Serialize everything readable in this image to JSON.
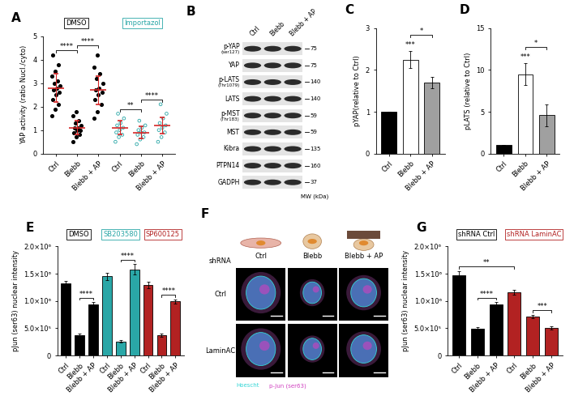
{
  "chart_data": [
    {
      "type": "scatter",
      "panel_label": "A",
      "ylabel": "YAP activity (ratio Nucl./cyto)",
      "categories": [
        "Ctrl",
        "Blebb",
        "Blebb + AP",
        "Ctrl",
        "Blebb",
        "Blebb + AP"
      ],
      "ylim": [
        0,
        5
      ],
      "yticks": [
        0,
        1,
        2,
        3,
        4,
        5
      ],
      "series": [
        {
          "name": "DMSO",
          "color": "#000000",
          "marker": "o",
          "points": [
            [
              1.6,
              1.9,
              2.1,
              2.3,
              2.5,
              2.6,
              2.7,
              2.8,
              2.9,
              3.0,
              3.1,
              3.3,
              3.5,
              3.8,
              4.2
            ],
            [
              0.5,
              0.7,
              0.8,
              0.9,
              1.0,
              1.0,
              1.1,
              1.1,
              1.2,
              1.3,
              1.4,
              1.6,
              1.8
            ],
            [
              1.5,
              1.8,
              2.1,
              2.3,
              2.5,
              2.6,
              2.7,
              2.8,
              3.0,
              3.2,
              3.4,
              3.7,
              4.2
            ],
            null,
            null,
            null
          ],
          "mean": [
            2.8,
            1.1,
            2.7,
            null,
            null,
            null
          ],
          "sd": [
            0.6,
            0.3,
            0.6,
            null,
            null,
            null
          ]
        },
        {
          "name": "Importazol",
          "color": "#2aa7a7",
          "marker": "open_circle",
          "points": [
            null,
            null,
            null,
            [
              0.5,
              0.7,
              0.8,
              0.9,
              1.0,
              1.1,
              1.2,
              1.3,
              1.5,
              1.7
            ],
            [
              0.4,
              0.6,
              0.7,
              0.8,
              0.9,
              0.9,
              1.0,
              1.1,
              1.2,
              1.4
            ],
            [
              0.5,
              0.7,
              0.9,
              1.0,
              1.1,
              1.2,
              1.3,
              1.5,
              1.7,
              2.1
            ]
          ],
          "mean": [
            null,
            null,
            null,
            1.1,
            0.9,
            1.2
          ],
          "sd": [
            null,
            null,
            null,
            0.3,
            0.25,
            0.35
          ]
        }
      ],
      "mean_color": "#d62728",
      "annotations": [
        {
          "text": "****",
          "from": 0,
          "to": 1
        },
        {
          "text": "****",
          "from": 1,
          "to": 2
        },
        {
          "text": "**",
          "from": 3,
          "to": 4
        },
        {
          "text": "****",
          "from": 4,
          "to": 5
        }
      ]
    },
    {
      "type": "bar",
      "panel_label": "C",
      "ylabel": "pYAP(relative to Ctrl)",
      "categories": [
        "Ctrl",
        "Blebb",
        "Blebb + AP"
      ],
      "values": [
        1,
        2.25,
        1.7
      ],
      "errors": [
        0,
        0.2,
        0.13
      ],
      "colors": [
        "#000000",
        "#ffffff",
        "#a0a0a0"
      ],
      "ylim": [
        0,
        3
      ],
      "yticks": [
        0,
        1,
        2,
        3
      ],
      "annotations": [
        {
          "text": "***",
          "from": 1,
          "to": 1
        },
        {
          "text": "*",
          "from": 1,
          "to": 2
        }
      ]
    },
    {
      "type": "bar",
      "panel_label": "D",
      "ylabel": "pLATS (relative to Ctrl)",
      "categories": [
        "Ctrl",
        "Blebb",
        "Blebb + AP"
      ],
      "values": [
        1,
        9.5,
        4.6
      ],
      "errors": [
        0,
        1.3,
        1.3
      ],
      "colors": [
        "#000000",
        "#ffffff",
        "#a0a0a0"
      ],
      "ylim": [
        0,
        15
      ],
      "yticks": [
        0,
        5,
        10,
        15
      ],
      "annotations": [
        {
          "text": "***",
          "from": 1,
          "to": 1
        },
        {
          "text": "*",
          "from": 1,
          "to": 2
        }
      ]
    },
    {
      "type": "bar",
      "panel_label": "E",
      "ylabel": "pJun (ser63) nuclear intensity",
      "categories": [
        "Ctrl",
        "Blebb",
        "Blebb + AP",
        "Ctrl",
        "Blebb",
        "Blebb + AP",
        "Ctrl",
        "Blebb",
        "Blebb + AP"
      ],
      "ylim": [
        0,
        2000000
      ],
      "yticks": [
        0,
        {
          "value": 500000,
          "label": "5.0×10⁵"
        },
        {
          "value": 1000000,
          "label": "1.0×10⁶"
        },
        {
          "value": 1500000,
          "label": "1.5×10⁶"
        },
        {
          "value": 2000000,
          "label": "2.0×10⁶"
        }
      ],
      "series": [
        {
          "name": "DMSO",
          "color": "#000000",
          "values": [
            1320000,
            380000,
            930000,
            null,
            null,
            null,
            null,
            null,
            null
          ],
          "errors": [
            50000,
            20000,
            50000,
            null,
            null,
            null,
            null,
            null,
            null
          ]
        },
        {
          "name": "SB203580",
          "color": "#2aa7a7",
          "values": [
            null,
            null,
            null,
            1450000,
            260000,
            1580000,
            null,
            null,
            null
          ],
          "errors": [
            null,
            null,
            null,
            70000,
            20000,
            100000,
            null,
            null,
            null
          ]
        },
        {
          "name": "SP600125",
          "color": "#b22222",
          "values": [
            null,
            null,
            null,
            null,
            null,
            null,
            1300000,
            380000,
            990000
          ],
          "errors": [
            null,
            null,
            null,
            null,
            null,
            null,
            60000,
            30000,
            40000
          ]
        }
      ],
      "annotations": [
        {
          "text": "****",
          "from": 1,
          "to": 2
        },
        {
          "text": "****",
          "from": 4,
          "to": 5
        },
        {
          "text": "****",
          "from": 7,
          "to": 8
        }
      ]
    },
    {
      "type": "bar",
      "panel_label": "G",
      "ylabel": "pJun (ser63) nuclear intensity",
      "categories": [
        "Ctrl",
        "Blebb",
        "Blebb + AP",
        "Ctrl",
        "Blebb",
        "Blebb + AP"
      ],
      "ylim": [
        0,
        2000000
      ],
      "yticks": [
        0,
        {
          "value": 500000,
          "label": "5.0×10⁵"
        },
        {
          "value": 1000000,
          "label": "1.0×10⁶"
        },
        {
          "value": 1500000,
          "label": "1.5×10⁶"
        },
        {
          "value": 2000000,
          "label": "2.0×10⁶"
        }
      ],
      "series": [
        {
          "name": "shRNA Ctrl",
          "color": "#000000",
          "values": [
            1470000,
            490000,
            940000,
            null,
            null,
            null
          ],
          "errors": [
            80000,
            30000,
            40000,
            null,
            null,
            null
          ]
        },
        {
          "name": "shRNA LaminAC",
          "color": "#b22222",
          "values": [
            null,
            null,
            null,
            1160000,
            720000,
            510000
          ],
          "errors": [
            null,
            null,
            null,
            50000,
            30000,
            30000
          ]
        }
      ],
      "annotations": [
        {
          "text": "****",
          "from": 1,
          "to": 2
        },
        {
          "text": "***",
          "from": 4,
          "to": 5
        },
        {
          "text": "**",
          "from": 0,
          "to": 3
        }
      ]
    }
  ],
  "blot": {
    "panel_label": "B",
    "columns": [
      "Ctrl",
      "Blebb",
      "Blebb + AP"
    ],
    "mw_header": "MW (kDa)",
    "rows": [
      {
        "label": "p-YAP",
        "sublabel": "(ser127)",
        "mw": "75"
      },
      {
        "label": "YAP",
        "mw": "75"
      },
      {
        "label": "p-LATS",
        "sublabel": "(Thr1079)",
        "mw": "140"
      },
      {
        "label": "LATS",
        "mw": "140"
      },
      {
        "label": "p-MST",
        "sublabel": "(Thr183)",
        "mw": "59"
      },
      {
        "label": "MST",
        "mw": "59"
      },
      {
        "label": "Kibra",
        "mw": "135"
      },
      {
        "label": "PTPN14",
        "mw": "160"
      },
      {
        "label": "GADPH",
        "mw": "37"
      }
    ]
  },
  "micrograph": {
    "panel_label": "F",
    "columns": [
      "Ctrl",
      "Blebb",
      "Blebb + AP"
    ],
    "row_header": "shRNA",
    "rows": [
      "Ctrl",
      "LaminAC"
    ],
    "stains": [
      {
        "label": "Hoescht",
        "color": "#33d6d6"
      },
      {
        "label": "p-Jun (ser63)",
        "color": "#d040c0"
      }
    ]
  }
}
